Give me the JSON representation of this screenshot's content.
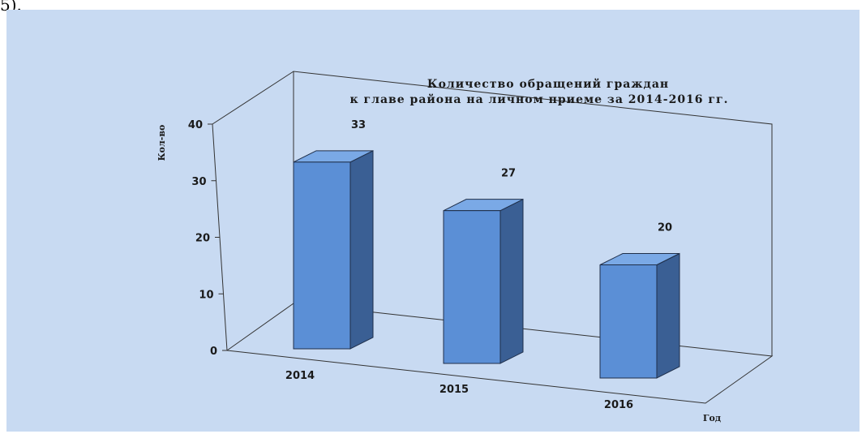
{
  "page_fragment": "5).",
  "chart_data": {
    "type": "bar",
    "title": "Количество обращений граждан",
    "subtitle": "к главе района на личном приеме за 2014-2016 гг.",
    "categories": [
      "2014",
      "2015",
      "2016"
    ],
    "values": [
      33,
      27,
      20
    ],
    "data_labels": [
      "33",
      "27",
      "20"
    ],
    "ylabel": "Кол-во",
    "xlabel": "Год",
    "ylim": [
      0,
      40
    ],
    "yticks": [
      "0",
      "10",
      "20",
      "30",
      "40"
    ],
    "style": "3d",
    "grid": false,
    "legend": "none",
    "colors": {
      "bar_front": "#5b8fd6",
      "bar_top": "#7aa9e6",
      "bar_side": "#3a5f94",
      "background": "#c8daf2"
    }
  }
}
